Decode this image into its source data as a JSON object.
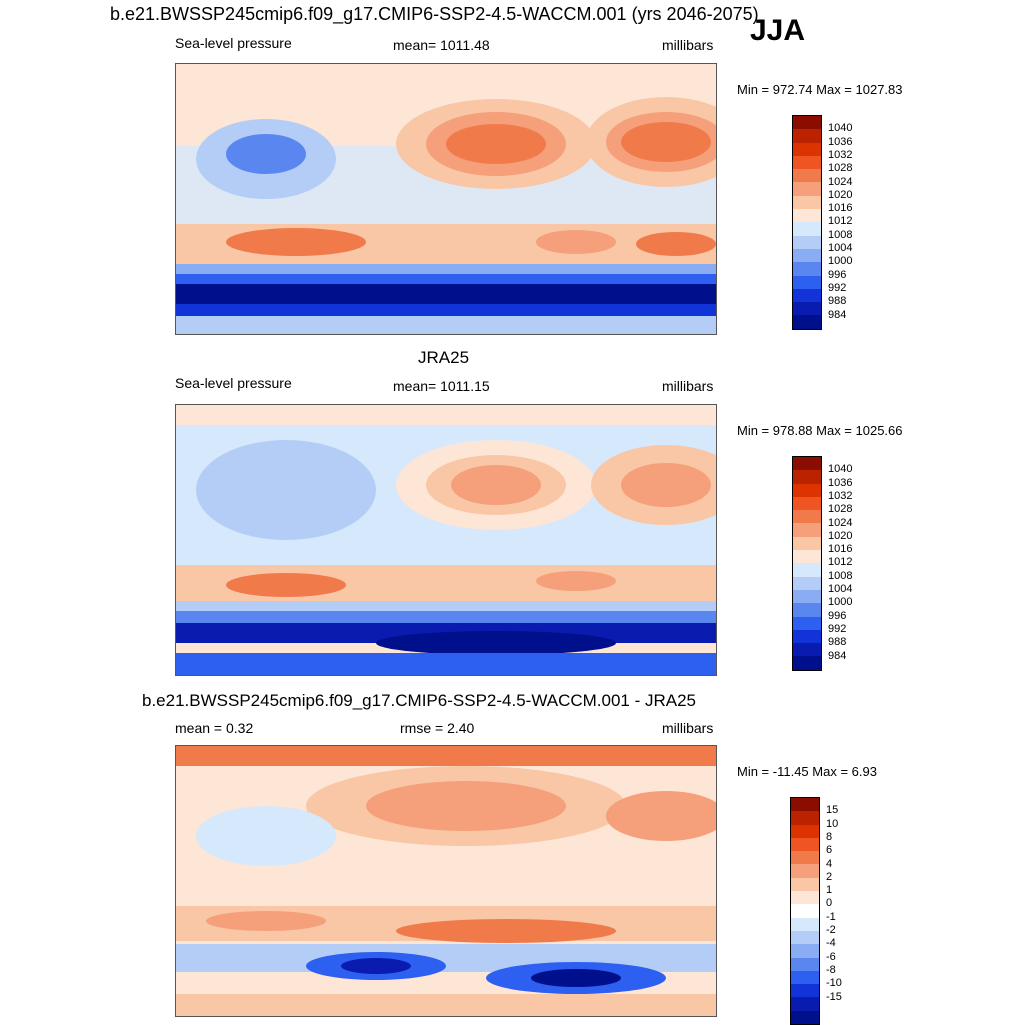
{
  "figure": {
    "title": "b.e21.BWSSP245cmip6.f09_g17.CMIP6-SSP2-4.5-WACCM.001 (yrs 2046-2075)",
    "season": "JJA"
  },
  "chart_data": [
    {
      "type": "heatmap",
      "panel": "model",
      "left_title": "Sea-level pressure",
      "center_title": "mean= 1011.48",
      "right_title": "millibars",
      "minmax": "Min = 972.74 Max = 1027.83",
      "colorbar": {
        "ticks": [
          "1040",
          "1036",
          "1032",
          "1028",
          "1024",
          "1020",
          "1016",
          "1012",
          "1008",
          "1004",
          "1000",
          "996",
          "992",
          "988",
          "984"
        ],
        "colors": [
          "#8b0d00",
          "#bb2200",
          "#dd3300",
          "#ee5522",
          "#f07a4a",
          "#f5a07a",
          "#f9c6a6",
          "#fde6d6",
          "#d6e8fb",
          "#b3cdf6",
          "#89acf3",
          "#5a86f0",
          "#2d5ff0",
          "#1133d8",
          "#0a1cb0",
          "#00108c"
        ]
      }
    },
    {
      "type": "heatmap",
      "panel": "observations",
      "panel_title": "JRA25",
      "left_title": "Sea-level pressure",
      "center_title": "mean= 1011.15",
      "right_title": "millibars",
      "minmax": "Min = 978.88 Max = 1025.66",
      "colorbar": {
        "ticks": [
          "1040",
          "1036",
          "1032",
          "1028",
          "1024",
          "1020",
          "1016",
          "1012",
          "1008",
          "1004",
          "1000",
          "996",
          "992",
          "988",
          "984"
        ],
        "colors": [
          "#8b0d00",
          "#bb2200",
          "#dd3300",
          "#ee5522",
          "#f07a4a",
          "#f5a07a",
          "#f9c6a6",
          "#fde6d6",
          "#d6e8fb",
          "#b3cdf6",
          "#89acf3",
          "#5a86f0",
          "#2d5ff0",
          "#1133d8",
          "#0a1cb0",
          "#00108c"
        ]
      }
    },
    {
      "type": "heatmap",
      "panel": "difference",
      "panel_title": "b.e21.BWSSP245cmip6.f09_g17.CMIP6-SSP2-4.5-WACCM.001 - JRA25",
      "left_title": "mean =   0.32",
      "center_title": "rmse =   2.40",
      "right_title": "millibars",
      "minmax": "Min = -11.45 Max =   6.93",
      "colorbar": {
        "ticks": [
          "15",
          "10",
          "8",
          "6",
          "4",
          "2",
          "1",
          "0",
          "-1",
          "-2",
          "-4",
          "-6",
          "-8",
          "-10",
          "-15"
        ],
        "colors": [
          "#8b0d00",
          "#bb2200",
          "#dd3300",
          "#ee5522",
          "#f07a4a",
          "#f5a07a",
          "#f9c6a6",
          "#fde6d6",
          "#ffffff",
          "#d6e8fb",
          "#b3cdf6",
          "#89acf3",
          "#5a86f0",
          "#2d5ff0",
          "#1133d8",
          "#0a1cb0",
          "#00108c"
        ]
      }
    }
  ]
}
